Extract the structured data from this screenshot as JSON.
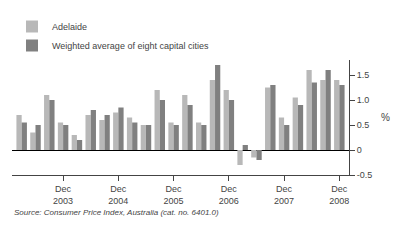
{
  "chart_data": {
    "type": "bar",
    "ylabel": "%",
    "annotations": [
      "Source: Consumer Price Index, Australia (cat. no. 6401.0)"
    ],
    "categories": [
      null,
      null,
      null,
      "Dec\n2003",
      null,
      null,
      null,
      "Dec\n2004",
      null,
      null,
      null,
      "Dec\n2005",
      null,
      null,
      null,
      "Dec\n2006",
      null,
      null,
      null,
      "Dec\n2007",
      null,
      null,
      null,
      "Dec\n2008"
    ],
    "series": [
      {
        "name": "Adelaide",
        "color": "#b8b8b8",
        "values": [
          0.7,
          0.35,
          1.1,
          0.55,
          0.3,
          0.7,
          0.6,
          0.75,
          0.65,
          0.5,
          1.2,
          0.55,
          1.1,
          0.55,
          1.4,
          1.2,
          -0.3,
          -0.15,
          1.25,
          0.65,
          1.05,
          1.6,
          1.4,
          1.4
        ]
      },
      {
        "name": "Weighted average of eight capital cities",
        "color": "#808080",
        "values": [
          0.55,
          0.5,
          1.0,
          0.5,
          0.2,
          0.8,
          0.7,
          0.85,
          0.55,
          0.5,
          1.0,
          0.5,
          0.9,
          0.5,
          1.7,
          1.0,
          0.1,
          -0.2,
          1.3,
          0.5,
          0.9,
          1.35,
          1.6,
          1.3
        ]
      }
    ],
    "ylim": [
      -0.5,
      1.8
    ],
    "yticks": [
      -0.5,
      0,
      0.5,
      {
        "value": 1,
        "label": "1.0"
      },
      1.5
    ],
    "grid": false,
    "legend": "upper left"
  }
}
